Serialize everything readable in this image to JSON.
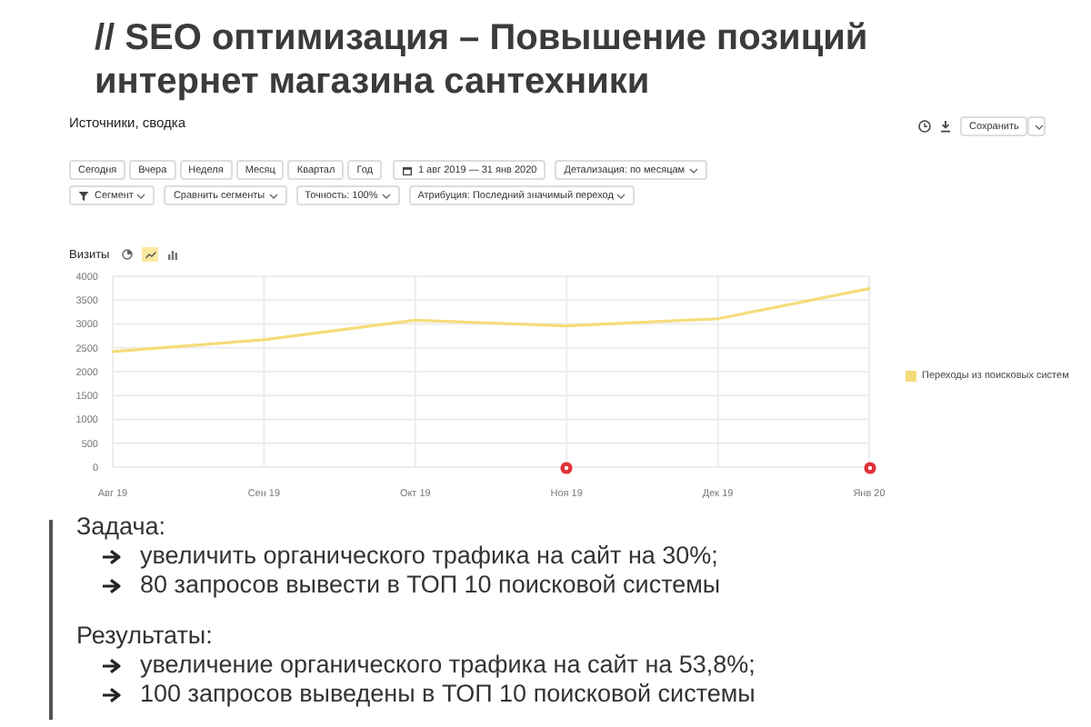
{
  "chart_data": {
    "type": "line",
    "title": "// SEO оптимизация – Повышение позиций интернет магазина сантехники",
    "subtitle": "Источники, сводка",
    "ylabel": "Визиты",
    "categories": [
      "Авг 19",
      "Сен 19",
      "Окт 19",
      "Ноя 19",
      "Дек 19",
      "Янв 20"
    ],
    "series": [
      {
        "name": "Переходы из поисковых систем",
        "color": "#f5dc7a",
        "values": [
          2420,
          2670,
          3080,
          2960,
          3110,
          3740
        ]
      }
    ],
    "ylim": [
      0,
      4000
    ],
    "yticks": [
      0,
      500,
      1000,
      1500,
      2000,
      2500,
      3000,
      3500,
      4000
    ],
    "grid": true,
    "legend": "right",
    "annotations": [
      "Сохранить",
      "Сегодня",
      "Вчера",
      "Неделя",
      "Месяц",
      "Квартал",
      "Год",
      "1 авг 2019 — 31 янв 2020",
      "Детализация: по месяцам",
      "Сегмент",
      "Сравнить сегменты",
      "Точность: 100%",
      "Атрибуция: Последний значимый переход",
      "Задача:",
      "увеличить органического трафика на сайт на 30%;",
      "80 запросов вывести в ТОП 10 поисковой системы",
      "Результаты:",
      "увеличение органического трафика на сайт на 53,8%;",
      "100 запросов выведены в ТОП 10 поисковой системы"
    ]
  }
}
